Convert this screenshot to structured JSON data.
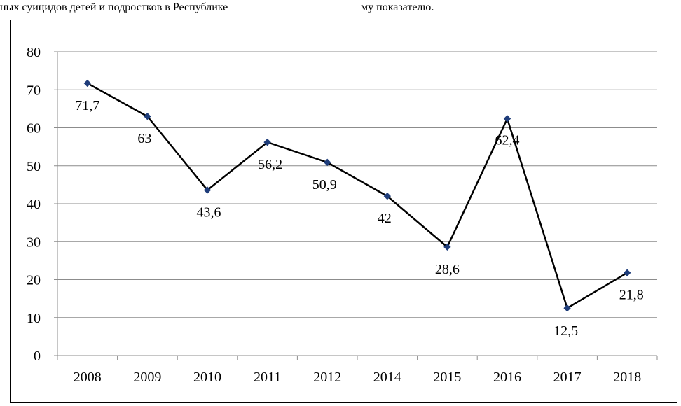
{
  "caption": {
    "left_text": "ных суицидов детей и подростков в Республике",
    "right_text": "му показателю."
  },
  "chart_data": {
    "type": "line",
    "title": "",
    "xlabel": "",
    "ylabel": "",
    "categories": [
      "2008",
      "2009",
      "2010",
      "2011",
      "2012",
      "2014",
      "2015",
      "2016",
      "2017",
      "2018"
    ],
    "series": [
      {
        "values": [
          71.7,
          63,
          43.6,
          56.2,
          50.9,
          42,
          28.6,
          62.4,
          12.5,
          21.8
        ]
      }
    ],
    "data_labels": [
      "71,7",
      "63",
      "43,6",
      "56,2",
      "50,9",
      "42",
      "28,6",
      "62,4",
      "12,5",
      "21,8"
    ],
    "ylim": [
      0,
      80
    ],
    "yticks": [
      "0",
      "10",
      "20",
      "30",
      "40",
      "50",
      "60",
      "70",
      "80"
    ],
    "grid": true,
    "legend": "none",
    "colors": {
      "line": "#000000",
      "marker": "#1f3d7a",
      "grid": "#8c8c8c"
    }
  }
}
